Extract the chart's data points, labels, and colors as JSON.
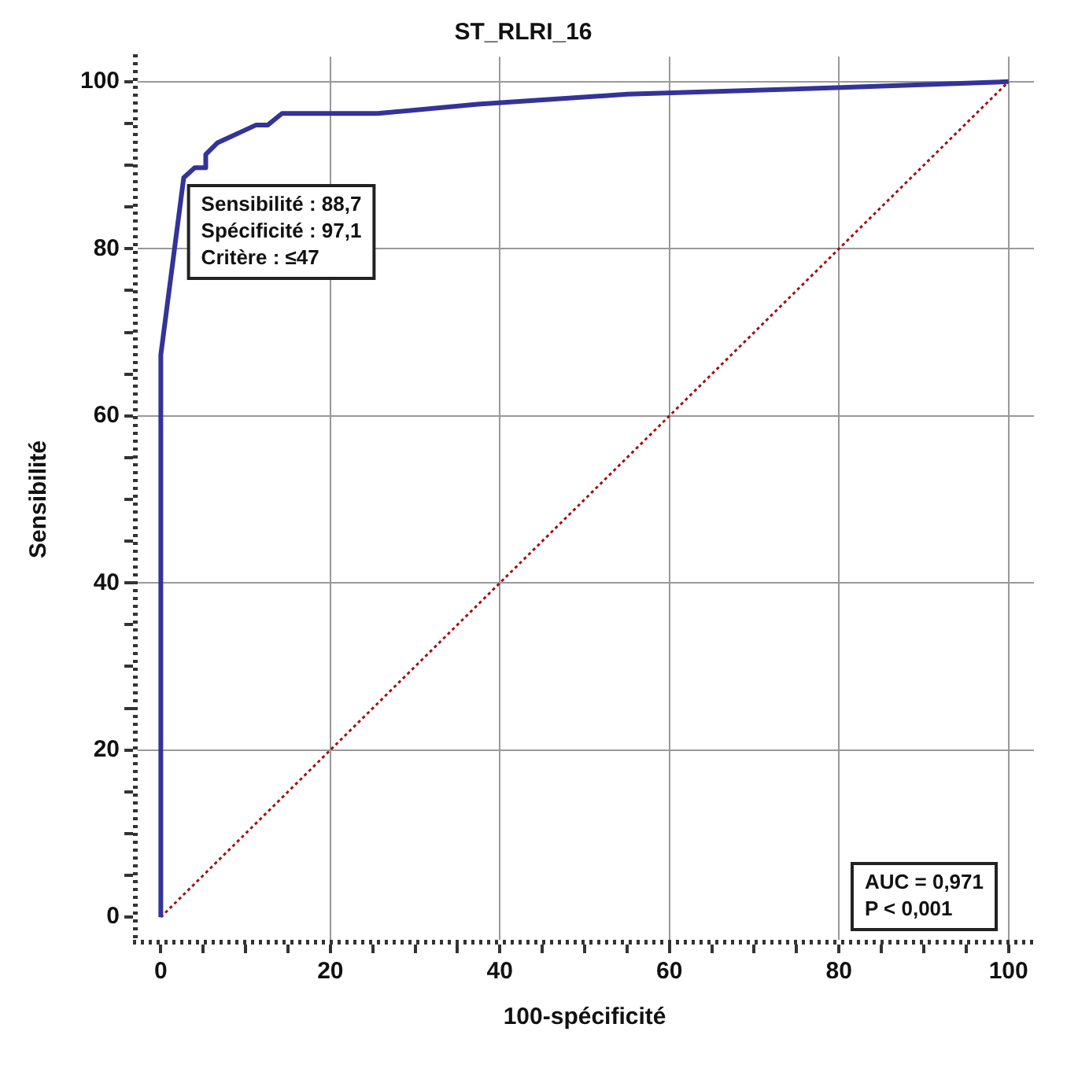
{
  "chart_data": {
    "type": "line",
    "title": "ST_RLRI_16",
    "xlabel": "100-spécificité",
    "ylabel": "Sensibilité",
    "xlim": [
      -3,
      103
    ],
    "ylim": [
      -3,
      103
    ],
    "xticks": [
      0,
      {
        "value": 5,
        "label": null
      },
      {
        "value": 10,
        "label": null
      },
      {
        "value": 15,
        "label": null
      },
      20,
      {
        "value": 25,
        "label": null
      },
      {
        "value": 30,
        "label": null
      },
      {
        "value": 35,
        "label": null
      },
      40,
      {
        "value": 45,
        "label": null
      },
      {
        "value": 50,
        "label": null
      },
      {
        "value": 55,
        "label": null
      },
      60,
      {
        "value": 65,
        "label": null
      },
      {
        "value": 70,
        "label": null
      },
      {
        "value": 75,
        "label": null
      },
      80,
      {
        "value": 85,
        "label": null
      },
      {
        "value": 90,
        "label": null
      },
      {
        "value": 95,
        "label": null
      },
      100
    ],
    "yticks": [
      0,
      {
        "value": 5,
        "label": null
      },
      {
        "value": 10,
        "label": null
      },
      {
        "value": 15,
        "label": null
      },
      20,
      {
        "value": 25,
        "label": null
      },
      {
        "value": 30,
        "label": null
      },
      {
        "value": 35,
        "label": null
      },
      40,
      {
        "value": 45,
        "label": null
      },
      {
        "value": 50,
        "label": null
      },
      {
        "value": 55,
        "label": null
      },
      60,
      {
        "value": 65,
        "label": null
      },
      {
        "value": 70,
        "label": null
      },
      {
        "value": 75,
        "label": null
      },
      80,
      {
        "value": 85,
        "label": null
      },
      {
        "value": 90,
        "label": null
      },
      {
        "value": 95,
        "label": null
      },
      100
    ],
    "grid": true,
    "legend": false,
    "marker": "none",
    "series": [
      {
        "color": "#333399",
        "line_style": "solid",
        "x": [
          0,
          0,
          2.7,
          4.0,
          5.3,
          5.3,
          6.7,
          11.2,
          12.6,
          14.3,
          25.6,
          37.4,
          55,
          80.3,
          100
        ],
        "values": [
          0,
          67.3,
          88.5,
          89.7,
          89.7,
          91.3,
          92.7,
          94.8,
          94.8,
          96.2,
          96.2,
          97.3,
          98.5,
          99.3,
          100
        ]
      },
      {
        "color": "#a01010",
        "line_style": "dotted",
        "x": [
          0,
          100
        ],
        "values": [
          0,
          100
        ]
      }
    ],
    "annotations": [
      {
        "text": "Sensibilité : 88,7\nSpécificité : 97,1\nCritère : ≤47",
        "x": 2.9,
        "y": 88.7
      },
      "AUC = 0,971\nP < 0,001"
    ]
  }
}
